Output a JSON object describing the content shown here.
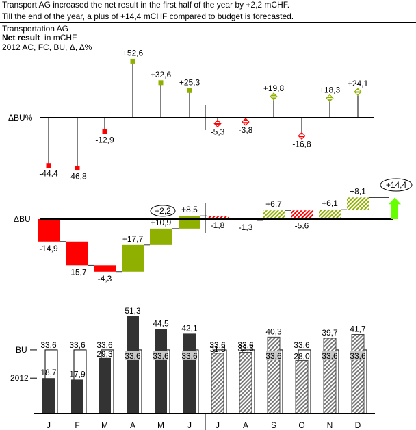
{
  "messages": {
    "line1": "Transport AG increased the net result in the first half of the year by +2,2 mCHF.",
    "line2": "Till the end of the year, a plus of +14,4 mCHF compared to budget is forecasted."
  },
  "header": {
    "company": "Transportation AG",
    "measure": "Net result",
    "unit": "in mCHF",
    "series_line": "2012 AC, FC, BU, Δ, Δ%"
  },
  "colors": {
    "positive": "#8fb000",
    "negative": "#ff0000",
    "actual_bar": "#333333",
    "forecast_hatch": "#777777",
    "total_arrow": "#66ff00"
  },
  "chart_data": [
    {
      "type": "pin",
      "name": "relative-variance",
      "axis_label": "ΔBU%",
      "categories": [
        "J",
        "F",
        "M",
        "A",
        "M",
        "J",
        "J",
        "A",
        "S",
        "O",
        "N",
        "D"
      ],
      "values": [
        -44.4,
        -46.8,
        -12.9,
        52.6,
        32.6,
        25.3,
        -5.3,
        -3.8,
        19.8,
        -16.8,
        18.3,
        24.1
      ],
      "labels": [
        "-44,4",
        "-46,8",
        "-12,9",
        "+52,6",
        "+32,6",
        "+25,3",
        "-5,3",
        "-3,8",
        "+19,8",
        "-16,8",
        "+18,3",
        "+24,1"
      ],
      "actual_months": 6
    },
    {
      "type": "waterfall",
      "name": "absolute-variance",
      "axis_label": "ΔBU",
      "categories": [
        "J",
        "F",
        "M",
        "A",
        "M",
        "J",
        "J",
        "A",
        "S",
        "O",
        "N",
        "D"
      ],
      "values": [
        -14.9,
        -15.7,
        -4.3,
        17.7,
        10.9,
        8.5,
        -1.8,
        -1.3,
        6.7,
        -5.6,
        6.1,
        8.1
      ],
      "labels": [
        "-14,9",
        "-15,7",
        "-4,3",
        "+17,7",
        "+10,9",
        "+8,5",
        "-1,8",
        "-1,3",
        "+6,7",
        "-5,6",
        "+6,1",
        "+8,1"
      ],
      "actual_months": 6,
      "half_year_total": 2.2,
      "half_year_total_label": "+2,2",
      "year_total": 14.4,
      "year_total_label": "+14,4"
    },
    {
      "type": "bar",
      "name": "actual-forecast-vs-budget",
      "categories": [
        "J",
        "F",
        "M",
        "A",
        "M",
        "J",
        "J",
        "A",
        "S",
        "O",
        "N",
        "D"
      ],
      "series": [
        {
          "name": "2012",
          "values": [
            18.7,
            17.9,
            29.3,
            51.3,
            44.5,
            42.1,
            31.8,
            32.3,
            40.3,
            28.0,
            39.7,
            41.7
          ],
          "labels": [
            "18,7",
            "17,9",
            "29,3",
            "51,3",
            "44,5",
            "42,1",
            "31,8",
            "32,3",
            "40,3",
            "28,0",
            "39,7",
            "41,7"
          ]
        },
        {
          "name": "BU",
          "values": [
            33.6,
            33.6,
            33.6,
            33.6,
            33.6,
            33.6,
            33.6,
            33.6,
            33.6,
            33.6,
            33.6,
            33.6
          ],
          "labels": [
            "33,6",
            "33,6",
            "33,6",
            "33,6",
            "33,6",
            "33,6",
            "33,6",
            "33,6",
            "33,6",
            "33,6",
            "33,6",
            "33,6"
          ]
        }
      ],
      "actual_months": 6
    }
  ]
}
